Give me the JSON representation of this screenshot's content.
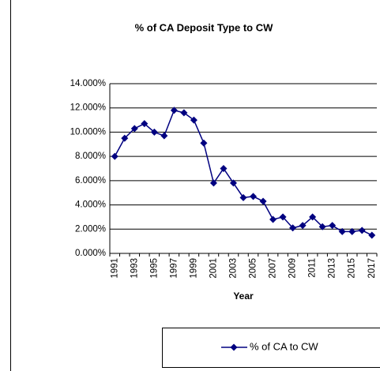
{
  "chart_data": {
    "type": "line",
    "title": "% of CA Deposit Type to CW",
    "xlabel": "Year",
    "categories": [
      "1991",
      null,
      "1993",
      null,
      "1995",
      null,
      "1997",
      null,
      "1999",
      null,
      "2001",
      null,
      "2003",
      null,
      "2005",
      null,
      "2007",
      null,
      "2009",
      null,
      "2011",
      null,
      "2013",
      null,
      "2015",
      null,
      "2017"
    ],
    "series": [
      {
        "name": "% of CA to CW",
        "color": "#000080",
        "values": [
          8.0,
          9.5,
          10.3,
          10.7,
          10.0,
          9.7,
          11.8,
          11.6,
          11.0,
          9.1,
          5.8,
          7.0,
          5.8,
          4.6,
          4.7,
          4.3,
          2.8,
          3.0,
          2.1,
          2.3,
          3.0,
          2.2,
          2.3,
          1.8,
          1.8,
          1.9,
          1.5
        ]
      }
    ],
    "ylim": [
      0,
      14
    ],
    "yticks": [
      {
        "value": 0,
        "label": "0.000%"
      },
      {
        "value": 2,
        "label": "2.000%"
      },
      {
        "value": 4,
        "label": "4.000%"
      },
      {
        "value": 6,
        "label": "6.000%"
      },
      {
        "value": 8,
        "label": "8.000%"
      },
      {
        "value": 10,
        "label": "10.000%"
      },
      {
        "value": 12,
        "label": "12.000%"
      },
      {
        "value": 14,
        "label": "14.000%"
      }
    ],
    "grid": true,
    "legend": "bottom-right"
  }
}
